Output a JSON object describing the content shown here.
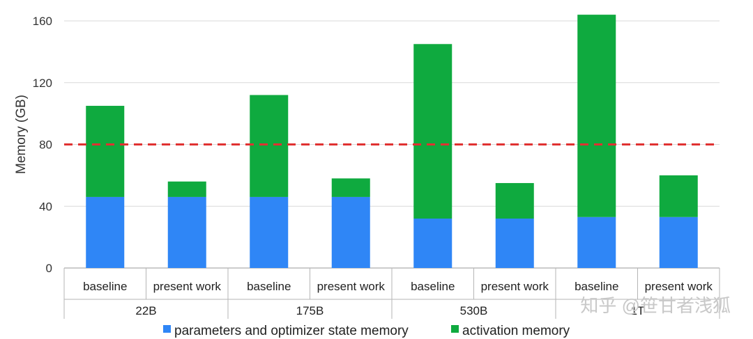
{
  "chart_data": {
    "type": "bar",
    "stacked": true,
    "ylabel": "Memory (GB)",
    "ylim": [
      0,
      170
    ],
    "yticks": [
      0,
      40,
      80,
      120,
      160
    ],
    "grid": true,
    "categories": [
      "baseline",
      "present work",
      "baseline",
      "present work",
      "baseline",
      "present work",
      "baseline",
      "present work"
    ],
    "groups": [
      {
        "label": "22B",
        "span": 2
      },
      {
        "label": "175B",
        "span": 2
      },
      {
        "label": "530B",
        "span": 2
      },
      {
        "label": "1T",
        "span": 2
      }
    ],
    "series": [
      {
        "name": "parameters and optimizer state memory",
        "color": "#2f86f6",
        "values": [
          46,
          46,
          46,
          46,
          32,
          32,
          33,
          33
        ]
      },
      {
        "name": "activation memory",
        "color": "#0faa3f",
        "values": [
          59,
          10,
          66,
          12,
          113,
          23,
          131,
          27
        ]
      }
    ],
    "reference_line": {
      "value": 80,
      "color": "#e03131",
      "style": "dashed"
    },
    "legend_position": "bottom"
  },
  "watermark": "知乎 @笹甘者浅狐"
}
